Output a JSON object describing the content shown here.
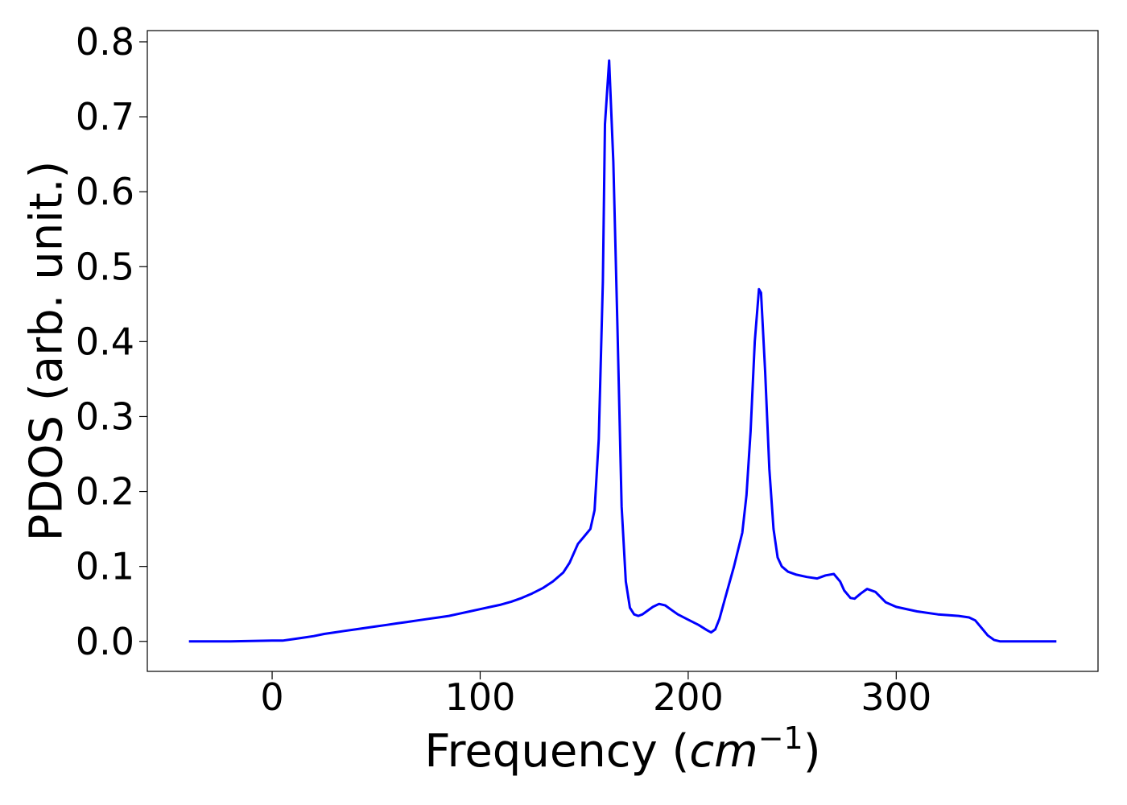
{
  "chart_data": {
    "type": "line",
    "title": "",
    "xlabel": "Frequency (",
    "xlabel_math": "cm",
    "xlabel_exp": "−1",
    "xlabel_close": ")",
    "ylabel": "PDOS (arb. unit.)",
    "xlim": [
      -60,
      397
    ],
    "ylim": [
      -0.04,
      0.815
    ],
    "x_ticks": [
      0,
      100,
      200,
      300
    ],
    "x_tick_labels": [
      "0",
      "100",
      "200",
      "300"
    ],
    "y_ticks": [
      0.0,
      0.1,
      0.2,
      0.3,
      0.4,
      0.5,
      0.6,
      0.7,
      0.8
    ],
    "y_tick_labels": [
      "0.0",
      "0.1",
      "0.2",
      "0.3",
      "0.4",
      "0.5",
      "0.6",
      "0.7",
      "0.8"
    ],
    "grid": false,
    "legend": "none",
    "series": [
      {
        "color": "#0000ff",
        "x": [
          -40,
          -20,
          0,
          5,
          10,
          15,
          20,
          25,
          30,
          35,
          40,
          45,
          50,
          55,
          60,
          65,
          70,
          75,
          80,
          85,
          90,
          95,
          100,
          105,
          110,
          115,
          120,
          125,
          130,
          135,
          140,
          143,
          147,
          150,
          153,
          155,
          157,
          159,
          160,
          162,
          164,
          166,
          168,
          170,
          172,
          174,
          176,
          178,
          180,
          183,
          186,
          189,
          192,
          195,
          200,
          205,
          209,
          211,
          213,
          215,
          218,
          222,
          226,
          228,
          230,
          232,
          234,
          235,
          237,
          239,
          241,
          243,
          245,
          248,
          252,
          257,
          262,
          266,
          270,
          273,
          275,
          278,
          280,
          283,
          286,
          290,
          295,
          300,
          310,
          320,
          330,
          335,
          338,
          341,
          344,
          347,
          350,
          360,
          377
        ],
        "y": [
          0.0,
          0.0,
          0.001,
          0.001,
          0.003,
          0.005,
          0.007,
          0.01,
          0.012,
          0.014,
          0.016,
          0.018,
          0.02,
          0.022,
          0.024,
          0.026,
          0.028,
          0.03,
          0.032,
          0.034,
          0.037,
          0.04,
          0.043,
          0.046,
          0.049,
          0.053,
          0.058,
          0.064,
          0.071,
          0.08,
          0.092,
          0.105,
          0.13,
          0.14,
          0.15,
          0.175,
          0.27,
          0.48,
          0.69,
          0.775,
          0.64,
          0.42,
          0.18,
          0.08,
          0.045,
          0.036,
          0.034,
          0.036,
          0.04,
          0.046,
          0.05,
          0.048,
          0.042,
          0.036,
          0.029,
          0.022,
          0.015,
          0.012,
          0.016,
          0.03,
          0.06,
          0.1,
          0.145,
          0.195,
          0.28,
          0.4,
          0.47,
          0.465,
          0.36,
          0.23,
          0.15,
          0.112,
          0.1,
          0.093,
          0.089,
          0.086,
          0.084,
          0.088,
          0.09,
          0.08,
          0.068,
          0.058,
          0.057,
          0.064,
          0.07,
          0.066,
          0.052,
          0.046,
          0.04,
          0.036,
          0.034,
          0.032,
          0.028,
          0.018,
          0.008,
          0.002,
          0.0,
          0.0,
          0.0
        ]
      }
    ]
  }
}
